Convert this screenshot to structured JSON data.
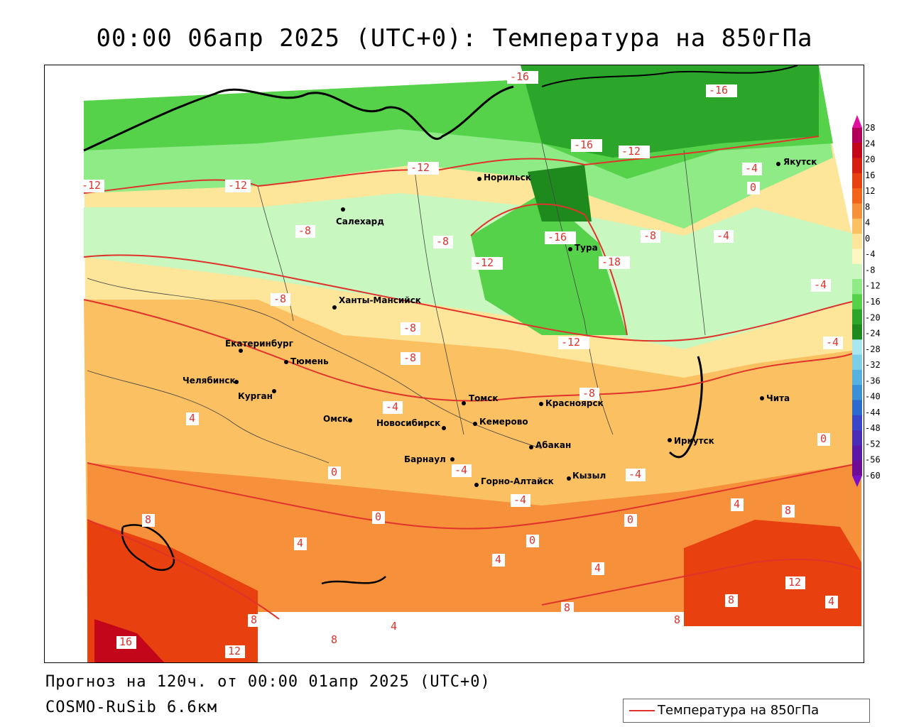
{
  "title": "00:00 06апр 2025 (UTC+0): Температура на 850гПа",
  "forecast_line": "Прогноз на 120ч. от 00:00 01апр 2025 (UTC+0)",
  "model_line": "COSMO-RuSib 6.6км",
  "legend": {
    "label": "Температура на 850гПа",
    "line_color": "#e0332c"
  },
  "colorbar": {
    "levels": [
      "28",
      "24",
      "20",
      "16",
      "12",
      "8",
      "4",
      "0",
      "-4",
      "-8",
      "-12",
      "-16",
      "-20",
      "-24",
      "-28",
      "-32",
      "-36",
      "-40",
      "-44",
      "-48",
      "-52",
      "-56",
      "-60"
    ],
    "colors": [
      "#b0005a",
      "#c4061a",
      "#d61f10",
      "#e8400f",
      "#f2641a",
      "#f7903a",
      "#fbc062",
      "#fde59a",
      "#fff7c2",
      "#c8f7c0",
      "#8eeb86",
      "#55d24a",
      "#2ba62a",
      "#1e8a1e",
      "#a8e6f0",
      "#7dcfe8",
      "#55b2e0",
      "#3a8fd6",
      "#2c6ad0",
      "#3a46c8",
      "#4a2cb8",
      "#5a18a8",
      "#6e0c98"
    ]
  },
  "cities": [
    {
      "name": "Якутск"
    },
    {
      "name": "Норильск"
    },
    {
      "name": "Салехард"
    },
    {
      "name": "Тура"
    },
    {
      "name": "Ханты-Мансийск"
    },
    {
      "name": "Екатеринбург"
    },
    {
      "name": "Тюмень"
    },
    {
      "name": "Челябинск"
    },
    {
      "name": "Курган"
    },
    {
      "name": "Омск"
    },
    {
      "name": "Новосибирск"
    },
    {
      "name": "Томск"
    },
    {
      "name": "Кемерово"
    },
    {
      "name": "Красноярск"
    },
    {
      "name": "Абакан"
    },
    {
      "name": "Барнаул"
    },
    {
      "name": "Горно-Алтайск"
    },
    {
      "name": "Кызыл"
    },
    {
      "name": "Иркутск"
    },
    {
      "name": "Чита"
    }
  ],
  "contour_labels": [
    "-16",
    "-16",
    "-16",
    "-16",
    "-12",
    "-12",
    "-12",
    "-12",
    "-12",
    "-12",
    "-8",
    "-8",
    "-8",
    "-8",
    "-8",
    "-8",
    "-8",
    "-4",
    "-4",
    "-4",
    "-4",
    "-4",
    "-4",
    "-4",
    "-4",
    "0",
    "0",
    "0",
    "0",
    "0",
    "0",
    "4",
    "4",
    "4",
    "4",
    "4",
    "4",
    "4",
    "8",
    "8",
    "8",
    "8",
    "8",
    "8",
    "8",
    "12",
    "12",
    "16",
    "-18"
  ]
}
